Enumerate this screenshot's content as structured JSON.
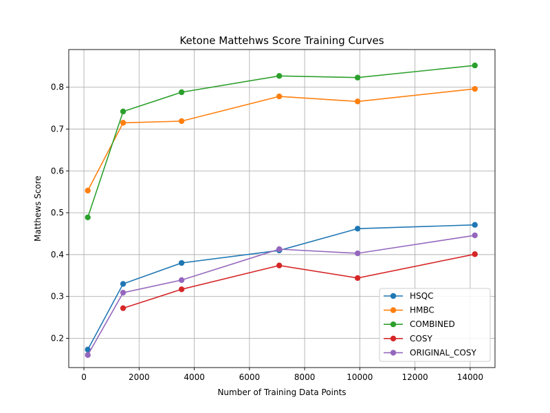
{
  "chart_data": {
    "type": "line",
    "title": "Ketone Mattehws Score Training Curves",
    "xlabel": "Number of Training Data Points",
    "ylabel": "Matthews Score",
    "xlim": [
      -550,
      14900
    ],
    "ylim": [
      0.13,
      0.89
    ],
    "xticks": [
      0,
      2000,
      4000,
      6000,
      8000,
      10000,
      12000,
      14000
    ],
    "xtick_labels": [
      "0",
      "2000",
      "4000",
      "6000",
      "8000",
      "10000",
      "12000",
      "14000"
    ],
    "yticks": [
      0.2,
      0.3,
      0.4,
      0.5,
      0.6,
      0.7,
      0.8
    ],
    "ytick_labels": [
      "0.2",
      "0.3",
      "0.4",
      "0.5",
      "0.6",
      "0.7",
      "0.8"
    ],
    "grid": true,
    "legend_position": "lower-right",
    "x": [
      140,
      1420,
      3540,
      7080,
      9920,
      14170
    ],
    "series": [
      {
        "name": "HSQC",
        "color": "#1f77b4",
        "values": [
          0.173,
          0.33,
          0.38,
          0.41,
          0.462,
          0.471
        ]
      },
      {
        "name": "HMBC",
        "color": "#ff7f0e",
        "values": [
          0.553,
          0.715,
          0.719,
          0.778,
          0.766,
          0.796
        ]
      },
      {
        "name": "COMBINED",
        "color": "#2ca02c",
        "values": [
          0.489,
          0.742,
          0.788,
          0.827,
          0.823,
          0.852
        ]
      },
      {
        "name": "COSY",
        "color": "#d62728",
        "values": [
          null,
          0.272,
          0.317,
          0.374,
          0.344,
          0.401
        ]
      },
      {
        "name": "ORIGINAL_COSY",
        "color": "#9467bd",
        "values": [
          0.16,
          0.309,
          0.339,
          0.413,
          0.403,
          0.446
        ]
      }
    ]
  }
}
